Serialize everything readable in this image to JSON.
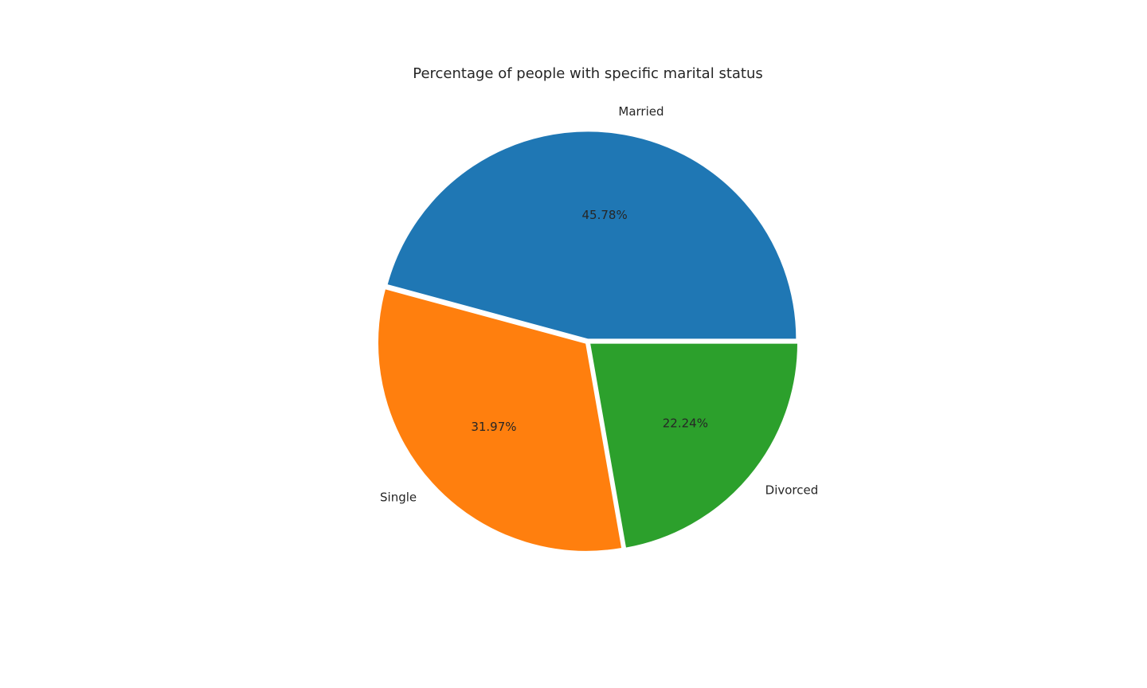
{
  "chart_data": {
    "type": "pie",
    "title": "Percentage of people with specific marital status",
    "categories": [
      "Married",
      "Single",
      "Divorced"
    ],
    "values": [
      45.78,
      31.97,
      22.24
    ],
    "value_labels": [
      "45.78%",
      "31.97%",
      "22.24%"
    ],
    "colors": [
      "#1f77b4",
      "#ff7f0e",
      "#2ca02c"
    ],
    "explode": [
      0.01,
      0.01,
      0.01
    ],
    "start_angle_deg": 0,
    "direction": "counterclockwise",
    "legend": "none"
  }
}
